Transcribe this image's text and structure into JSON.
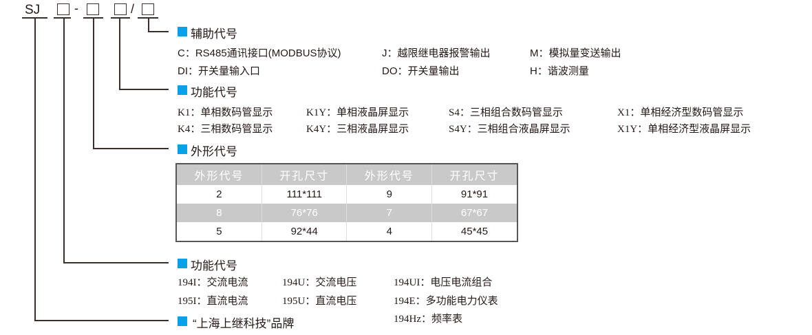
{
  "model": {
    "prefix": "SJ",
    "dash": "-",
    "slash": "/"
  },
  "sections": {
    "aux": {
      "title": "辅助代号",
      "items": [
        "C：RS485通讯接口(MODBUS协议)",
        "J：越限继电器报警输出",
        "M：模拟量变送输出",
        "DI：开关量输入口",
        "DO：开关量输出",
        "H：谐波测量"
      ]
    },
    "display": {
      "title": "功能代号",
      "items": [
        "K1：单相数码管显示",
        "K1Y：单相液晶屏显示",
        "S4：三相组合数码管显示",
        "X1：单相经济型数码管显示",
        "K4：三相数码管显示",
        "K4Y：三相液晶屏显示",
        "S4Y：三相组合液晶屏显示",
        "X1Y：单相经济型液晶屏显示"
      ]
    },
    "shape": {
      "title": "外形代号",
      "table": {
        "headers": [
          "外形代号",
          "开孔尺寸",
          "外形代号",
          "开孔尺寸"
        ],
        "rows": [
          [
            "2",
            "111*111",
            "9",
            "91*91"
          ],
          [
            "8",
            "76*76",
            "7",
            "67*67"
          ],
          [
            "5",
            "92*44",
            "4",
            "45*45"
          ]
        ]
      }
    },
    "function": {
      "title": "功能代号",
      "items": [
        "194I：交流电流",
        "194U：交流电压",
        "194UI：电压电流组合",
        "195I：直流电流",
        "195U：直流电压",
        "194E：多功能电力仪表",
        "194Hz：频率表"
      ]
    },
    "brand": {
      "title": "“上海上继科技”品牌"
    }
  },
  "colors": {
    "accent": "#0aa0e6",
    "line": "#3a2e2a",
    "table_gray": "#c9c9ca"
  }
}
